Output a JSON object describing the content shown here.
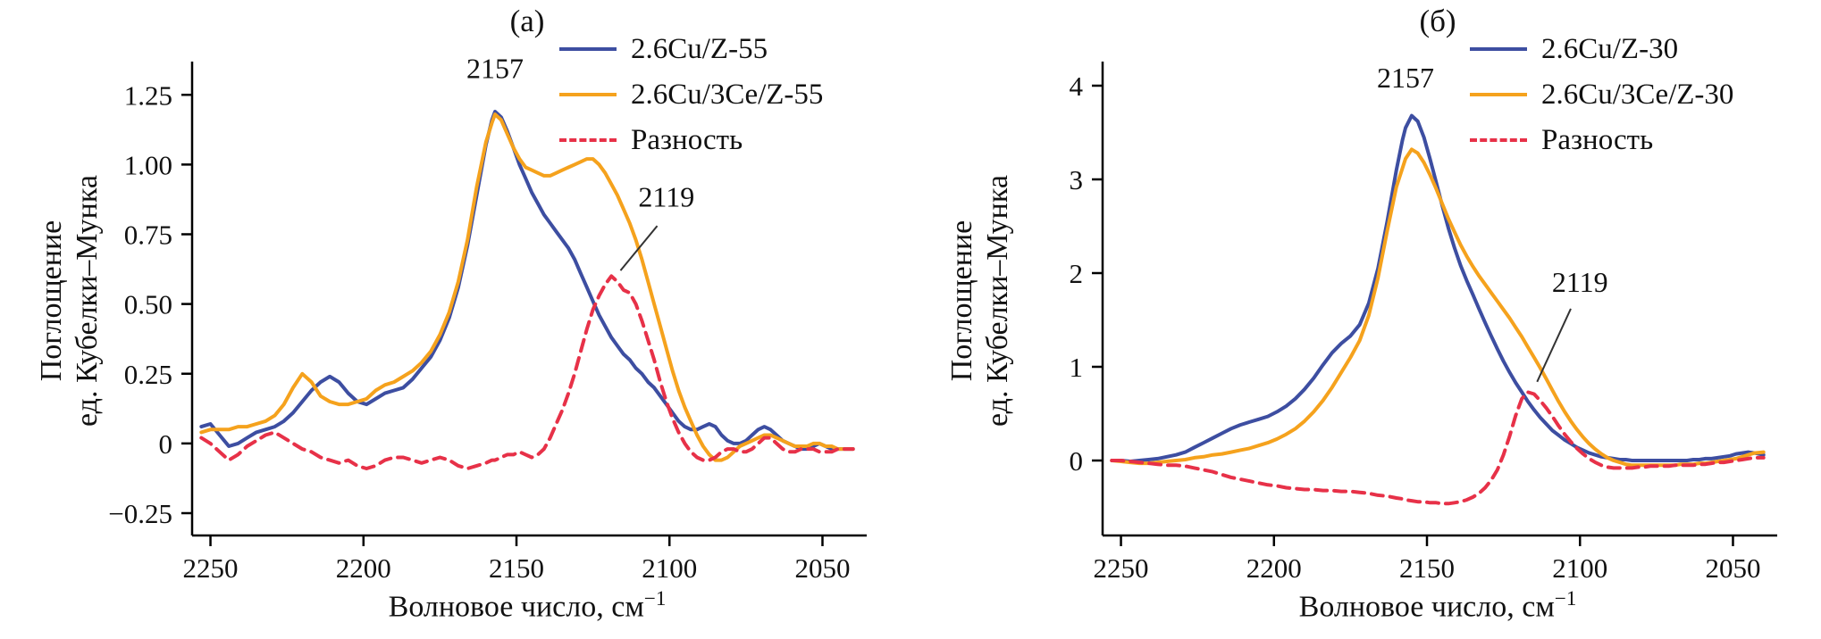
{
  "figure": {
    "background": "#ffffff",
    "axis_color": "#000000",
    "text_color": "#111111"
  },
  "chart_data": [
    {
      "type": "line",
      "title": "(а)",
      "xlabel": "Волновое число, см",
      "xlabel_sup": "−1",
      "ylabel_line1": "Поглощение",
      "ylabel_line2": "ед. Кубелки–Мунка",
      "xlim": [
        2256,
        2037
      ],
      "ylim": [
        -0.33,
        1.35
      ],
      "x_reversed": true,
      "grid": false,
      "legend_position": "top-right",
      "xticks": [
        2250,
        2200,
        2150,
        2100,
        2050
      ],
      "yticks": [
        -0.25,
        0,
        0.25,
        0.5,
        0.75,
        1,
        1.25
      ],
      "ytick_labels": [
        "−0.25",
        "0",
        "0.25",
        "0.50",
        "0.75",
        "1.00",
        "1.25"
      ],
      "x": [
        2253,
        2250,
        2247,
        2244,
        2241,
        2238,
        2235,
        2232,
        2229,
        2226,
        2223,
        2220,
        2217,
        2214,
        2211,
        2208,
        2205,
        2202,
        2199,
        2196,
        2193,
        2190,
        2187,
        2184,
        2181,
        2178,
        2175,
        2172,
        2169,
        2166,
        2163,
        2160,
        2158,
        2157,
        2155,
        2153,
        2151,
        2149,
        2147,
        2145,
        2143,
        2141,
        2139,
        2137,
        2135,
        2133,
        2131,
        2129,
        2127,
        2125,
        2123,
        2121,
        2119,
        2117,
        2115,
        2113,
        2111,
        2109,
        2107,
        2105,
        2103,
        2101,
        2099,
        2097,
        2095,
        2093,
        2091,
        2089,
        2087,
        2085,
        2083,
        2081,
        2079,
        2077,
        2075,
        2073,
        2071,
        2069,
        2067,
        2065,
        2063,
        2061,
        2059,
        2057,
        2055,
        2053,
        2051,
        2049,
        2047,
        2045,
        2043,
        2040
      ],
      "series": [
        {
          "name": "2.6Cu/Z-55",
          "color": "#3d4ea1",
          "dash": false,
          "y": [
            0.06,
            0.07,
            0.03,
            -0.01,
            0.0,
            0.02,
            0.04,
            0.05,
            0.06,
            0.08,
            0.11,
            0.15,
            0.19,
            0.22,
            0.24,
            0.22,
            0.18,
            0.15,
            0.14,
            0.16,
            0.18,
            0.19,
            0.2,
            0.23,
            0.27,
            0.31,
            0.37,
            0.45,
            0.56,
            0.71,
            0.89,
            1.07,
            1.16,
            1.19,
            1.17,
            1.12,
            1.06,
            1.0,
            0.95,
            0.9,
            0.86,
            0.82,
            0.79,
            0.76,
            0.73,
            0.7,
            0.66,
            0.61,
            0.56,
            0.51,
            0.46,
            0.42,
            0.38,
            0.35,
            0.32,
            0.3,
            0.27,
            0.25,
            0.22,
            0.2,
            0.17,
            0.14,
            0.11,
            0.08,
            0.06,
            0.05,
            0.05,
            0.06,
            0.07,
            0.06,
            0.03,
            0.01,
            0.0,
            0.0,
            0.01,
            0.03,
            0.05,
            0.06,
            0.05,
            0.03,
            0.01,
            0.0,
            -0.01,
            -0.02,
            -0.02,
            -0.01,
            0.0,
            -0.01,
            -0.02,
            -0.02,
            -0.02,
            -0.02
          ]
        },
        {
          "name": "2.6Cu/3Ce/Z-55",
          "color": "#f5a21d",
          "dash": false,
          "y": [
            0.04,
            0.05,
            0.05,
            0.05,
            0.06,
            0.06,
            0.07,
            0.08,
            0.1,
            0.14,
            0.2,
            0.25,
            0.22,
            0.17,
            0.15,
            0.14,
            0.14,
            0.15,
            0.16,
            0.19,
            0.21,
            0.22,
            0.24,
            0.26,
            0.29,
            0.33,
            0.39,
            0.47,
            0.58,
            0.73,
            0.92,
            1.08,
            1.15,
            1.18,
            1.16,
            1.11,
            1.06,
            1.02,
            0.99,
            0.98,
            0.97,
            0.96,
            0.96,
            0.97,
            0.98,
            0.99,
            1.0,
            1.01,
            1.02,
            1.02,
            1.0,
            0.97,
            0.93,
            0.89,
            0.84,
            0.79,
            0.73,
            0.66,
            0.58,
            0.5,
            0.42,
            0.34,
            0.26,
            0.19,
            0.13,
            0.08,
            0.03,
            -0.01,
            -0.04,
            -0.06,
            -0.06,
            -0.05,
            -0.03,
            -0.01,
            0.0,
            0.01,
            0.02,
            0.03,
            0.03,
            0.02,
            0.01,
            0.0,
            -0.01,
            -0.01,
            -0.01,
            0.0,
            0.0,
            -0.01,
            -0.01,
            -0.02,
            -0.02,
            -0.02
          ]
        },
        {
          "name": "Разность",
          "color": "#e73148",
          "dash": true,
          "y": [
            0.02,
            0.0,
            -0.03,
            -0.06,
            -0.04,
            -0.01,
            0.01,
            0.03,
            0.04,
            0.02,
            0.0,
            -0.02,
            -0.03,
            -0.05,
            -0.06,
            -0.07,
            -0.06,
            -0.08,
            -0.09,
            -0.08,
            -0.06,
            -0.05,
            -0.05,
            -0.06,
            -0.07,
            -0.06,
            -0.05,
            -0.06,
            -0.08,
            -0.09,
            -0.08,
            -0.07,
            -0.06,
            -0.06,
            -0.05,
            -0.04,
            -0.04,
            -0.03,
            -0.04,
            -0.05,
            -0.04,
            -0.02,
            0.02,
            0.07,
            0.12,
            0.18,
            0.25,
            0.33,
            0.41,
            0.48,
            0.53,
            0.57,
            0.6,
            0.58,
            0.55,
            0.54,
            0.5,
            0.44,
            0.37,
            0.3,
            0.22,
            0.15,
            0.09,
            0.04,
            0.0,
            -0.03,
            -0.05,
            -0.06,
            -0.06,
            -0.05,
            -0.03,
            -0.02,
            -0.02,
            -0.03,
            -0.03,
            -0.02,
            0.0,
            0.02,
            0.02,
            0.0,
            -0.02,
            -0.03,
            -0.03,
            -0.02,
            -0.02,
            -0.02,
            -0.03,
            -0.03,
            -0.03,
            -0.02,
            -0.02,
            -0.02
          ]
        }
      ],
      "annotations": [
        {
          "text": "2157",
          "x": 2157,
          "y": 1.31,
          "anchor": "middle"
        },
        {
          "text": "2119",
          "x": 2101,
          "y": 0.85,
          "anchor": "middle",
          "line": [
            2104,
            0.78,
            2116,
            0.62
          ]
        }
      ]
    },
    {
      "type": "line",
      "title": "(б)",
      "xlabel": "Волновое число, см",
      "xlabel_sup": "−1",
      "ylabel_line1": "Поглощение",
      "ylabel_line2": "ед. Кубелки–Мунка",
      "xlim": [
        2256,
        2037
      ],
      "ylim": [
        -0.8,
        4.2
      ],
      "x_reversed": true,
      "grid": false,
      "legend_position": "top-right",
      "xticks": [
        2250,
        2200,
        2150,
        2100,
        2050
      ],
      "yticks": [
        0,
        1,
        2,
        3,
        4
      ],
      "ytick_labels": [
        "0",
        "1",
        "2",
        "3",
        "4"
      ],
      "x": [
        2253,
        2250,
        2247,
        2244,
        2241,
        2238,
        2235,
        2232,
        2229,
        2226,
        2223,
        2220,
        2217,
        2214,
        2211,
        2208,
        2205,
        2202,
        2199,
        2196,
        2193,
        2190,
        2187,
        2184,
        2181,
        2178,
        2175,
        2172,
        2169,
        2166,
        2163,
        2160,
        2158,
        2157,
        2155,
        2153,
        2151,
        2149,
        2147,
        2145,
        2143,
        2141,
        2139,
        2137,
        2135,
        2133,
        2131,
        2129,
        2127,
        2125,
        2123,
        2121,
        2119,
        2117,
        2115,
        2113,
        2111,
        2109,
        2107,
        2105,
        2103,
        2101,
        2099,
        2097,
        2095,
        2093,
        2091,
        2089,
        2087,
        2085,
        2083,
        2081,
        2079,
        2077,
        2075,
        2073,
        2071,
        2069,
        2067,
        2065,
        2063,
        2061,
        2059,
        2057,
        2055,
        2053,
        2051,
        2049,
        2047,
        2045,
        2043,
        2040
      ],
      "series": [
        {
          "name": "2.6Cu/Z-30",
          "color": "#3d4ea1",
          "dash": false,
          "y": [
            0.0,
            0.0,
            -0.01,
            0.0,
            0.01,
            0.02,
            0.04,
            0.06,
            0.09,
            0.14,
            0.19,
            0.24,
            0.29,
            0.34,
            0.38,
            0.41,
            0.44,
            0.47,
            0.52,
            0.58,
            0.66,
            0.76,
            0.88,
            1.02,
            1.15,
            1.25,
            1.33,
            1.45,
            1.68,
            2.05,
            2.55,
            3.1,
            3.42,
            3.55,
            3.68,
            3.62,
            3.45,
            3.22,
            2.97,
            2.72,
            2.48,
            2.27,
            2.08,
            1.92,
            1.77,
            1.62,
            1.47,
            1.33,
            1.19,
            1.06,
            0.94,
            0.83,
            0.73,
            0.63,
            0.54,
            0.46,
            0.39,
            0.32,
            0.27,
            0.22,
            0.18,
            0.14,
            0.11,
            0.08,
            0.06,
            0.04,
            0.03,
            0.02,
            0.01,
            0.01,
            0.0,
            0.0,
            0.0,
            0.0,
            0.0,
            0.0,
            0.0,
            0.0,
            0.0,
            0.0,
            0.01,
            0.01,
            0.02,
            0.02,
            0.03,
            0.04,
            0.05,
            0.07,
            0.08,
            0.09,
            0.08,
            0.06
          ]
        },
        {
          "name": "2.6Cu/3Ce/Z-30",
          "color": "#f5a21d",
          "dash": false,
          "y": [
            0.0,
            -0.01,
            -0.02,
            -0.03,
            -0.03,
            -0.02,
            -0.01,
            0.0,
            0.01,
            0.03,
            0.04,
            0.06,
            0.07,
            0.09,
            0.11,
            0.13,
            0.16,
            0.19,
            0.23,
            0.28,
            0.34,
            0.42,
            0.52,
            0.64,
            0.78,
            0.94,
            1.1,
            1.28,
            1.55,
            1.95,
            2.45,
            2.92,
            3.12,
            3.22,
            3.32,
            3.28,
            3.18,
            3.05,
            2.9,
            2.74,
            2.58,
            2.44,
            2.3,
            2.18,
            2.07,
            1.97,
            1.88,
            1.79,
            1.7,
            1.61,
            1.52,
            1.42,
            1.32,
            1.21,
            1.1,
            0.99,
            0.87,
            0.75,
            0.63,
            0.52,
            0.42,
            0.33,
            0.25,
            0.18,
            0.12,
            0.07,
            0.03,
            0.0,
            -0.02,
            -0.04,
            -0.05,
            -0.05,
            -0.05,
            -0.05,
            -0.05,
            -0.05,
            -0.05,
            -0.05,
            -0.04,
            -0.04,
            -0.04,
            -0.03,
            -0.03,
            -0.02,
            -0.01,
            0.0,
            0.01,
            0.02,
            0.04,
            0.06,
            0.08,
            0.09
          ]
        },
        {
          "name": "Разность",
          "color": "#e73148",
          "dash": true,
          "y": [
            0.0,
            0.0,
            -0.01,
            -0.02,
            -0.03,
            -0.04,
            -0.05,
            -0.05,
            -0.06,
            -0.08,
            -0.1,
            -0.12,
            -0.15,
            -0.18,
            -0.2,
            -0.22,
            -0.24,
            -0.26,
            -0.27,
            -0.29,
            -0.3,
            -0.31,
            -0.31,
            -0.32,
            -0.32,
            -0.33,
            -0.33,
            -0.34,
            -0.35,
            -0.37,
            -0.38,
            -0.4,
            -0.41,
            -0.42,
            -0.43,
            -0.44,
            -0.44,
            -0.45,
            -0.45,
            -0.46,
            -0.46,
            -0.45,
            -0.44,
            -0.42,
            -0.39,
            -0.35,
            -0.29,
            -0.21,
            -0.1,
            0.06,
            0.26,
            0.48,
            0.66,
            0.73,
            0.71,
            0.64,
            0.56,
            0.47,
            0.37,
            0.28,
            0.2,
            0.13,
            0.07,
            0.02,
            -0.02,
            -0.05,
            -0.07,
            -0.08,
            -0.08,
            -0.08,
            -0.08,
            -0.07,
            -0.07,
            -0.06,
            -0.06,
            -0.06,
            -0.06,
            -0.05,
            -0.05,
            -0.05,
            -0.05,
            -0.04,
            -0.04,
            -0.03,
            -0.02,
            -0.02,
            -0.01,
            0.0,
            0.01,
            0.02,
            0.03,
            0.03
          ]
        }
      ],
      "annotations": [
        {
          "text": "2157",
          "x": 2157,
          "y": 3.98,
          "anchor": "middle"
        },
        {
          "text": "2119",
          "x": 2100,
          "y": 1.8,
          "anchor": "middle",
          "line": [
            2103,
            1.62,
            2114,
            0.84
          ]
        }
      ]
    }
  ]
}
